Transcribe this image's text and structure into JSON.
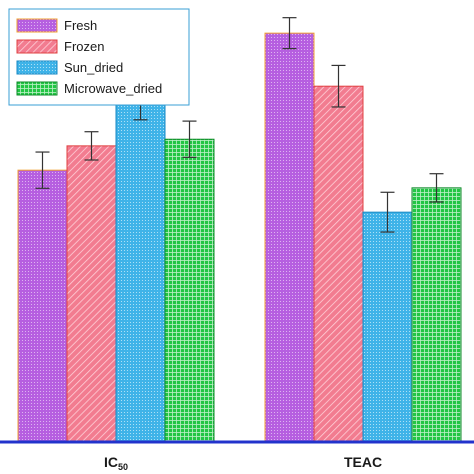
{
  "chart_data": {
    "type": "bar",
    "title": "",
    "xlabel": "",
    "ylabel": "",
    "categories": [
      "IC50",
      "TEAC"
    ],
    "category_labels": [
      {
        "main": "IC",
        "sub": "50"
      },
      {
        "main": "TEAC",
        "sub": ""
      }
    ],
    "ylim": [
      0,
      100
    ],
    "grid": false,
    "legend_position": "top-left",
    "series": [
      {
        "name": "Fresh",
        "values": [
          61.5,
          92.5
        ],
        "errors": [
          4.1,
          3.5
        ],
        "color": "#b65fe0",
        "pattern": "dots",
        "border": "#f0a030"
      },
      {
        "name": "Frozen",
        "values": [
          67.0,
          80.5
        ],
        "errors": [
          3.2,
          4.7
        ],
        "color": "#f06a80",
        "pattern": "diagonal",
        "border": "#e04040"
      },
      {
        "name": "Sun_dried",
        "values": [
          76.5,
          52.0
        ],
        "errors": [
          3.6,
          4.5
        ],
        "color": "#3fb3e8",
        "pattern": "dots",
        "border": "#1a8ac4"
      },
      {
        "name": "Microwave_dried",
        "values": [
          68.5,
          57.5
        ],
        "errors": [
          4.1,
          3.2
        ],
        "color": "#22c544",
        "pattern": "grid",
        "border": "#0f8a2a"
      }
    ]
  },
  "colors": {
    "axis": "#2233cc",
    "legend_border": "#3a9fd6",
    "error_bar": "#333333"
  }
}
